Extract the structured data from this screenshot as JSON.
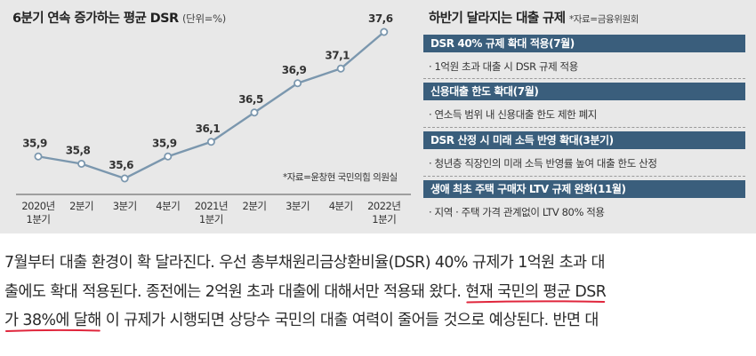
{
  "chart_title": "6분기 연속 증가하는 평균 DSR",
  "chart_unit": "(단위=%)",
  "chart_source": "*자료=윤창현 국민의힘 의원실",
  "chart_data": {
    "type": "line",
    "title": "6분기 연속 증가하는 평균 DSR",
    "unit": "%",
    "categories": [
      "2020년 1분기",
      "2분기",
      "3분기",
      "4분기",
      "2021년 1분기",
      "2분기",
      "3분기",
      "4분기",
      "2022년 1분기"
    ],
    "values": [
      35.9,
      35.8,
      35.6,
      35.9,
      36.1,
      36.5,
      36.9,
      37.1,
      37.6
    ],
    "value_labels": [
      "35,9",
      "35,8",
      "35,6",
      "35,9",
      "36,1",
      "36,5",
      "36,9",
      "37,1",
      "37,6"
    ],
    "tick_labels": [
      [
        "2020년",
        "1분기"
      ],
      [
        "2분기"
      ],
      [
        "3분기"
      ],
      [
        "4분기"
      ],
      [
        "2021년",
        "1분기"
      ],
      [
        "2분기"
      ],
      [
        "3분기"
      ],
      [
        "4분기"
      ],
      [
        "2022년",
        "1분기"
      ]
    ],
    "line_color": "#7b97ae"
  },
  "regulation": {
    "title": "하반기 달라지는 대출 규제",
    "source": "*자료=금융위원회",
    "items": [
      {
        "header": "DSR 40% 규제 확대 적용(7월)",
        "detail": "· 1억원 초과 대출 시 DSR 규제 적용"
      },
      {
        "header": "신용대출 한도 확대(7월)",
        "detail": "· 연소득 범위 내 신용대출 한도 제한 폐지"
      },
      {
        "header": "DSR 산정 시 미래 소득 반영 확대(3분기)",
        "detail": "· 청년층 직장인의 미래 소득 반영률 높여 대출 한도 산정"
      },
      {
        "header": "생애 최초 주택 구매자 LTV 규제 완화(11월)",
        "detail": "· 지역 · 주택 가격 관계없이 LTV 80% 적용"
      }
    ],
    "header_color": "#3a5e7c"
  },
  "article": {
    "line1": "7월부터 대출 환경이 확 달라진다. 우선 총부채원리금상환비율(DSR) 40% 규제가 1억원 초과 대",
    "line2_a": "출에도 확대 적용된다. 종전에는 2억원 초과 대출에 대해서만 적용돼 왔다. ",
    "line2_hl": "현재 국민의 평균 DSR",
    "line3_hl": "가 38%에 달해",
    "line3_b": " 이 규제가 시행되면 상당수 국민의 대출 여력이 줄어들 것으로 예상된다. 반면 대",
    "underline_color": "#e0263c"
  }
}
